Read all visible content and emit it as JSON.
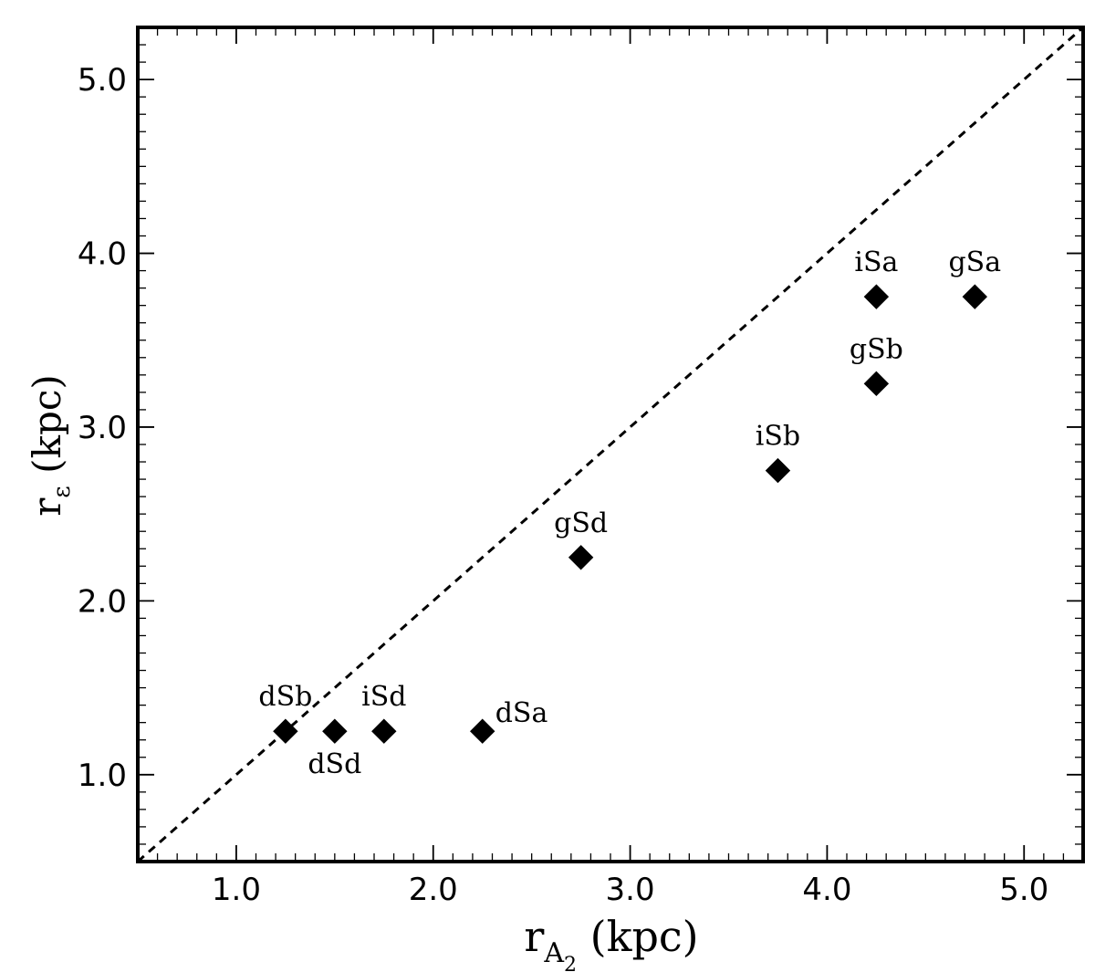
{
  "chart_data": {
    "type": "scatter",
    "title": "",
    "xlabel": "r",
    "xlabel_sub": "A",
    "xlabel_subsub": "2",
    "xlabel_unit": " (kpc)",
    "ylabel": "r",
    "ylabel_sub": "ε",
    "ylabel_unit": " (kpc)",
    "xlim": [
      0.5,
      5.3
    ],
    "ylim": [
      0.5,
      5.3
    ],
    "xticks": [
      1.0,
      2.0,
      3.0,
      4.0,
      5.0
    ],
    "yticks": [
      1.0,
      2.0,
      3.0,
      4.0,
      5.0
    ],
    "xtick_labels": [
      "1.0",
      "2.0",
      "3.0",
      "4.0",
      "5.0"
    ],
    "ytick_labels": [
      "1.0",
      "2.0",
      "3.0",
      "4.0",
      "5.0"
    ],
    "reference_line": {
      "style": "dashed",
      "from": [
        0.5,
        0.5
      ],
      "to": [
        5.3,
        5.3
      ]
    },
    "marker": "diamond",
    "marker_color": "#000000",
    "points": [
      {
        "label": "dSb",
        "x": 1.25,
        "y": 1.25,
        "label_pos": "above"
      },
      {
        "label": "dSd",
        "x": 1.5,
        "y": 1.25,
        "label_pos": "below"
      },
      {
        "label": "iSd",
        "x": 1.75,
        "y": 1.25,
        "label_pos": "above"
      },
      {
        "label": "dSa",
        "x": 2.25,
        "y": 1.25,
        "label_pos": "right"
      },
      {
        "label": "gSd",
        "x": 2.75,
        "y": 2.25,
        "label_pos": "above"
      },
      {
        "label": "iSb",
        "x": 3.75,
        "y": 2.75,
        "label_pos": "above"
      },
      {
        "label": "gSb",
        "x": 4.25,
        "y": 3.25,
        "label_pos": "above"
      },
      {
        "label": "iSa",
        "x": 4.25,
        "y": 3.75,
        "label_pos": "above"
      },
      {
        "label": "gSa",
        "x": 4.75,
        "y": 3.75,
        "label_pos": "above"
      }
    ]
  }
}
